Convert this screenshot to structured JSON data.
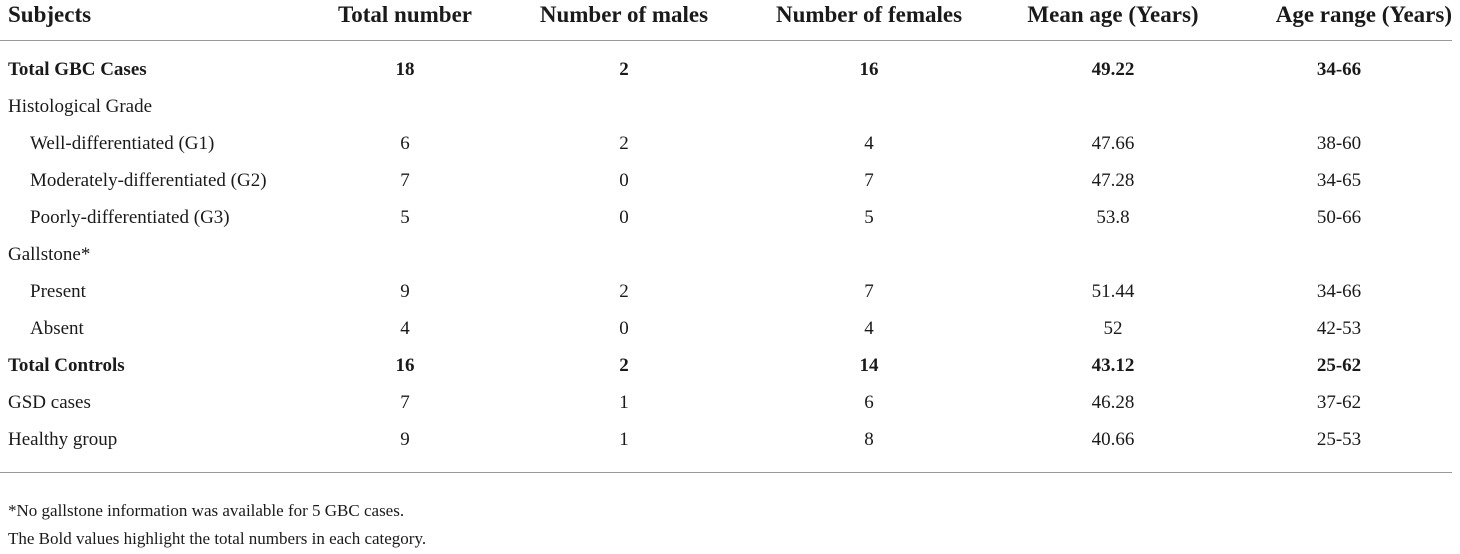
{
  "table": {
    "headers": [
      "Subjects",
      "Total number",
      "Number of males",
      "Number of females",
      "Mean age (Years)",
      "Age range (Years)"
    ],
    "rows": [
      {
        "label": "Total GBC Cases",
        "values": [
          "18",
          "2",
          "16",
          "49.22",
          "34-66"
        ]
      },
      {
        "label": "Histological Grade",
        "values": [
          "",
          "",
          "",
          "",
          ""
        ]
      },
      {
        "label": "Well-differentiated (G1)",
        "values": [
          "6",
          "2",
          "4",
          "47.66",
          "38-60"
        ]
      },
      {
        "label": "Moderately-differentiated (G2)",
        "values": [
          "7",
          "0",
          "7",
          "47.28",
          "34-65"
        ]
      },
      {
        "label": "Poorly-differentiated (G3)",
        "values": [
          "5",
          "0",
          "5",
          "53.8",
          "50-66"
        ]
      },
      {
        "label": "Gallstone*",
        "values": [
          "",
          "",
          "",
          "",
          ""
        ]
      },
      {
        "label": "Present",
        "values": [
          "9",
          "2",
          "7",
          "51.44",
          "34-66"
        ]
      },
      {
        "label": "Absent",
        "values": [
          "4",
          "0",
          "4",
          "52",
          "42-53"
        ]
      },
      {
        "label": "Total Controls",
        "values": [
          "16",
          "2",
          "14",
          "43.12",
          "25-62"
        ]
      },
      {
        "label": "GSD cases",
        "values": [
          "7",
          "1",
          "6",
          "46.28",
          "37-62"
        ]
      },
      {
        "label": "Healthy group",
        "values": [
          "9",
          "1",
          "8",
          "40.66",
          "25-53"
        ]
      }
    ]
  },
  "notes": {
    "footnote": "*No gallstone information was available for 5 GBC cases.",
    "bold_note": "The Bold values highlight the total numbers in each category."
  }
}
